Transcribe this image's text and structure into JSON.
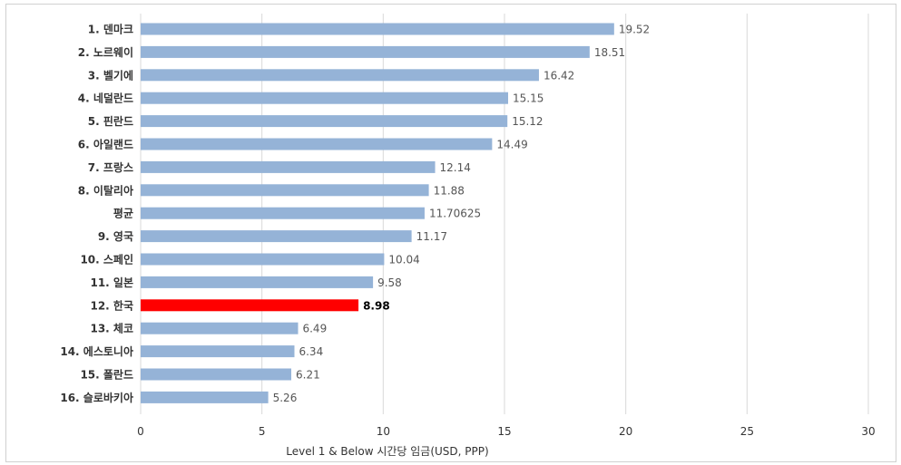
{
  "chart_data": {
    "type": "bar",
    "orientation": "horizontal",
    "title": "",
    "xlabel": "Level 1 & Below 시간당 임금(USD, PPP)",
    "ylabel": "",
    "xlim": [
      0,
      30
    ],
    "xticks": [
      "0",
      "5",
      "10",
      "15",
      "20",
      "25",
      "30"
    ],
    "grid": "vertical",
    "legend": "none",
    "bar_color": "#95b3d7",
    "highlight_color": "#ff0000",
    "highlight_index": 12,
    "categories": [
      "1. 덴마크",
      "2. 노르웨이",
      "3. 벨기에",
      "4. 네덜란드",
      "5. 핀란드",
      "6. 아일랜드",
      "7. 프랑스",
      "8. 이탈리아",
      "평균",
      "9. 영국",
      "10. 스페인",
      "11. 일본",
      "12. 한국",
      "13. 체코",
      "14. 에스토니아",
      "15. 폴란드",
      "16. 슬로바키아"
    ],
    "values": [
      19.52,
      18.51,
      16.42,
      15.15,
      15.12,
      14.49,
      12.14,
      11.88,
      11.70625,
      11.17,
      10.04,
      9.58,
      8.98,
      6.49,
      6.34,
      6.21,
      5.26
    ],
    "value_labels": [
      "19.52",
      "18.51",
      "16.42",
      "15.15",
      "15.12",
      "14.49",
      "12.14",
      "11.88",
      "11.70625",
      "11.17",
      "10.04",
      "9.58",
      "8.98",
      "6.49",
      "6.34",
      "6.21",
      "5.26"
    ]
  }
}
